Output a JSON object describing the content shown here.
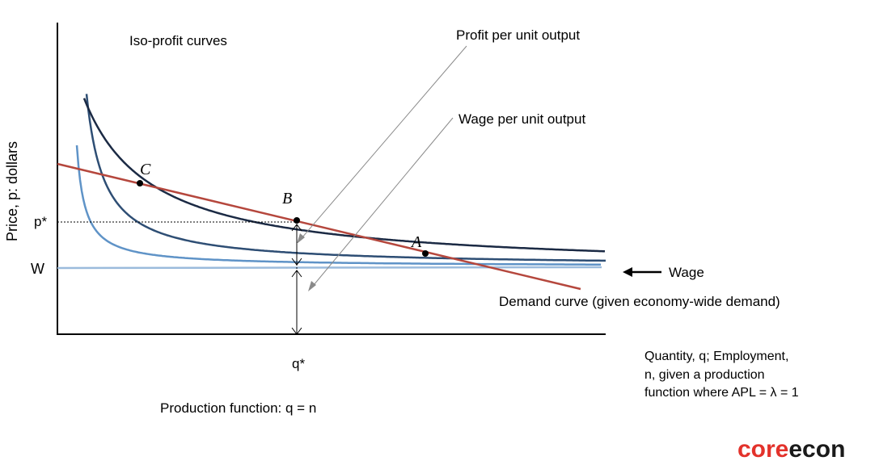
{
  "labels": {
    "iso_profit": "Iso-profit curves",
    "profit_per_unit": "Profit per unit output",
    "wage_per_unit": "Wage per unit output",
    "wage": "Wage",
    "demand": "Demand curve (given economy-wide demand)",
    "y_axis": "Price, p: dollars",
    "p_star": "p*",
    "w": "W",
    "q_star": "q*",
    "x_axis_line1": "Quantity, q; Employment,",
    "x_axis_line2": "n, given a production",
    "x_axis_line3": "function where APL = λ = 1",
    "production_function": "Production function: q = n",
    "point_a": "A",
    "point_b": "B",
    "point_c": "C"
  },
  "brand": {
    "part1": "core",
    "part2": "econ"
  },
  "colors": {
    "curve_outer": "#1b2a44",
    "curve_middle": "#2e4e74",
    "curve_inner": "#5f93c7",
    "wage_line": "#9bbbdc",
    "demand_line": "#b5473d",
    "brand_red": "#e3322b"
  }
}
